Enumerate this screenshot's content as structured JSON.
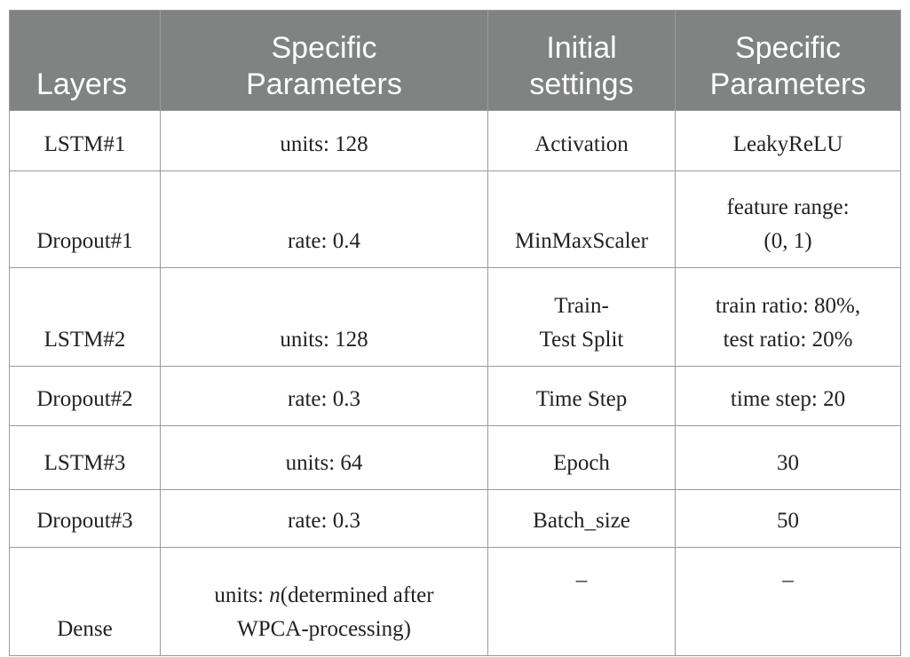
{
  "table": {
    "headers": [
      "Layers",
      "Specific\nParameters",
      "Initial\nsettings",
      "Specific\nParameters"
    ],
    "header_lines": [
      [
        "Layers"
      ],
      [
        "Specific",
        "Parameters"
      ],
      [
        "Initial",
        "settings"
      ],
      [
        "Specific",
        "Parameters"
      ]
    ],
    "rows": [
      {
        "layer": "LSTM#1",
        "layer_params": [
          "units: 128"
        ],
        "setting": [
          "Activation"
        ],
        "setting_params": [
          "LeakyReLU"
        ]
      },
      {
        "layer": "Dropout#1",
        "layer_params": [
          "rate: 0.4"
        ],
        "setting": [
          "MinMaxScaler"
        ],
        "setting_params": [
          "feature range:",
          "(0, 1)"
        ]
      },
      {
        "layer": "LSTM#2",
        "layer_params": [
          "units: 128"
        ],
        "setting": [
          "Train-",
          "Test Split"
        ],
        "setting_params": [
          "train ratio: 80%,",
          "test ratio: 20%"
        ]
      },
      {
        "layer": "Dropout#2",
        "layer_params": [
          "rate: 0.3"
        ],
        "setting": [
          "Time Step"
        ],
        "setting_params": [
          "time step: 20"
        ]
      },
      {
        "layer": "LSTM#3",
        "layer_params": [
          "units: 64"
        ],
        "setting": [
          "Epoch"
        ],
        "setting_params": [
          "30"
        ]
      },
      {
        "layer": "Dropout#3",
        "layer_params": [
          "rate: 0.3"
        ],
        "setting": [
          "Batch_size"
        ],
        "setting_params": [
          "50"
        ]
      },
      {
        "layer": "Dense",
        "layer_params_prefix": "units: ",
        "layer_params_italic": "n",
        "layer_params_rest": "(determined after",
        "layer_params_line2": "WPCA-processing)",
        "setting": [
          "–"
        ],
        "setting_params": [
          "–"
        ]
      }
    ]
  }
}
